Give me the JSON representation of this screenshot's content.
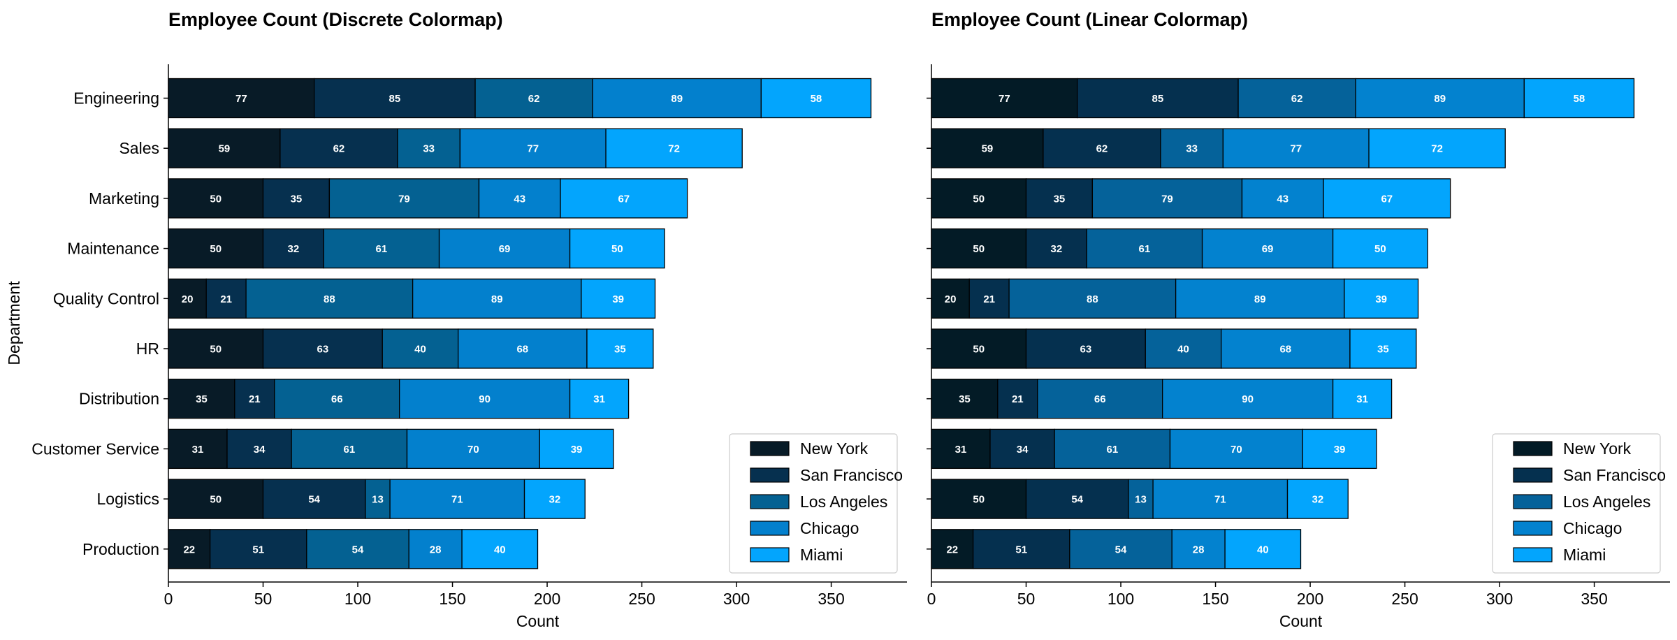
{
  "chart_data": [
    {
      "type": "bar",
      "orientation": "horizontal",
      "stacked": true,
      "title": "Employee Count (Discrete Colormap)",
      "xlabel": "Count",
      "ylabel": "Department",
      "xlim": [
        0,
        390
      ],
      "xticks": [
        0,
        50,
        100,
        150,
        200,
        250,
        300,
        350
      ],
      "grid": false,
      "legend_position": "lower-right",
      "categories": [
        "Engineering",
        "Sales",
        "Marketing",
        "Maintenance",
        "Quality Control",
        "HR",
        "Distribution",
        "Customer Service",
        "Logistics",
        "Production"
      ],
      "series": [
        {
          "name": "New York",
          "color": "#081b27",
          "values": [
            77,
            59,
            50,
            50,
            20,
            50,
            35,
            31,
            50,
            22
          ]
        },
        {
          "name": "San Francisco",
          "color": "#06304f",
          "values": [
            85,
            62,
            35,
            32,
            21,
            63,
            21,
            34,
            54,
            51
          ]
        },
        {
          "name": "Los Angeles",
          "color": "#046192",
          "values": [
            62,
            33,
            79,
            61,
            88,
            40,
            66,
            61,
            13,
            54
          ]
        },
        {
          "name": "Chicago",
          "color": "#0380cd",
          "values": [
            89,
            77,
            43,
            69,
            89,
            68,
            90,
            70,
            71,
            28
          ]
        },
        {
          "name": "Miami",
          "color": "#03a5fd",
          "values": [
            58,
            72,
            67,
            50,
            39,
            35,
            31,
            39,
            32,
            40
          ]
        }
      ]
    },
    {
      "type": "bar",
      "orientation": "horizontal",
      "stacked": true,
      "title": "Employee Count (Linear Colormap)",
      "xlabel": "Count",
      "ylabel": "",
      "xlim": [
        0,
        390
      ],
      "xticks": [
        0,
        50,
        100,
        150,
        200,
        250,
        300,
        350
      ],
      "grid": false,
      "legend_position": "lower-right",
      "categories": [
        "Engineering",
        "Sales",
        "Marketing",
        "Maintenance",
        "Quality Control",
        "HR",
        "Distribution",
        "Customer Service",
        "Logistics",
        "Production"
      ],
      "series": [
        {
          "name": "New York",
          "color": "#031b26",
          "values": [
            77,
            59,
            50,
            50,
            20,
            50,
            35,
            31,
            50,
            22
          ]
        },
        {
          "name": "San Francisco",
          "color": "#05304f",
          "values": [
            85,
            62,
            35,
            32,
            21,
            63,
            21,
            34,
            54,
            51
          ]
        },
        {
          "name": "Los Angeles",
          "color": "#05629a",
          "values": [
            62,
            33,
            79,
            61,
            88,
            40,
            66,
            61,
            13,
            54
          ]
        },
        {
          "name": "Chicago",
          "color": "#0382cf",
          "values": [
            89,
            77,
            43,
            69,
            89,
            68,
            90,
            70,
            71,
            28
          ]
        },
        {
          "name": "Miami",
          "color": "#03a5fd",
          "values": [
            58,
            72,
            67,
            50,
            39,
            35,
            31,
            39,
            32,
            40
          ]
        }
      ]
    }
  ]
}
